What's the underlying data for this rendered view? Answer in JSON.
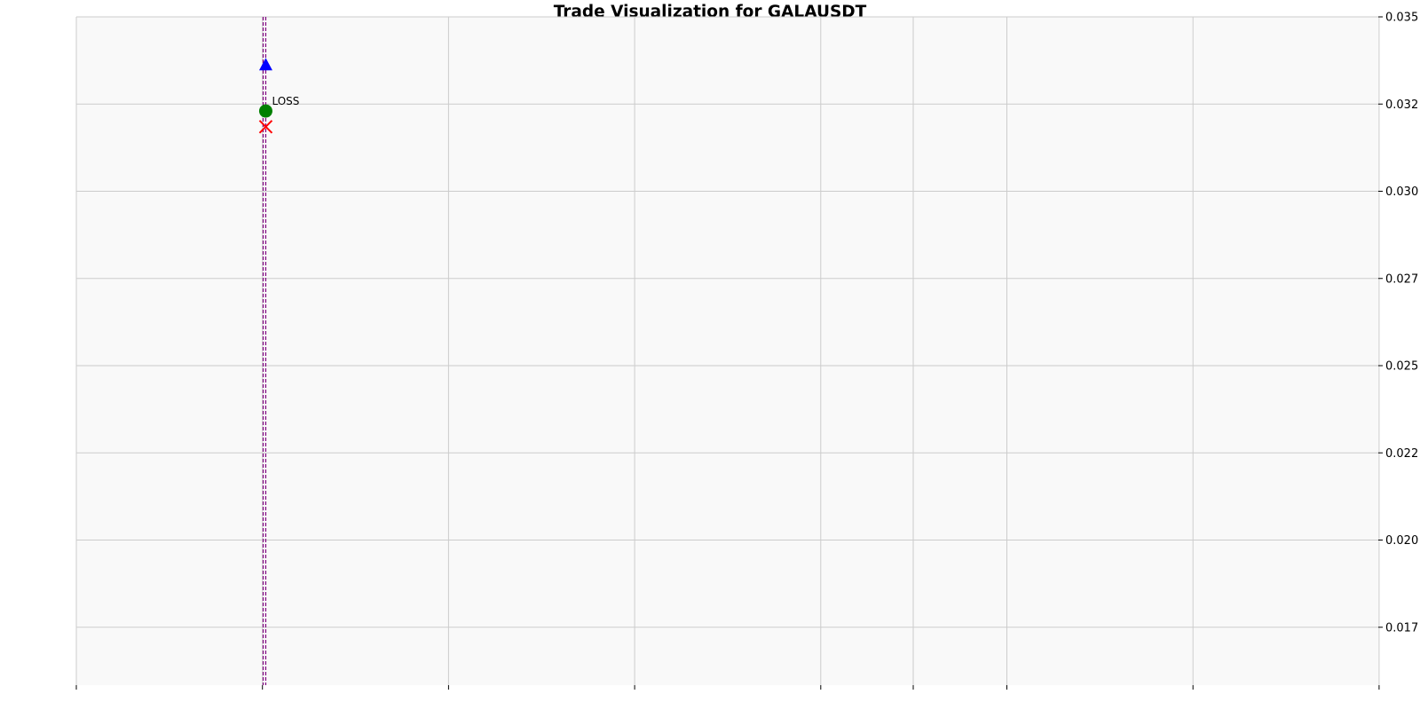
{
  "chart_data": {
    "type": "scatter",
    "title": "Trade Visualization for GALAUSDT",
    "xlabel": "",
    "ylabel": "",
    "ylim": [
      0.01584,
      0.035
    ],
    "y_ticks": [
      "0.017",
      "0.020",
      "0.022",
      "0.025",
      "0.027",
      "0.030",
      "0.032",
      "0.035"
    ],
    "y_tick_values": [
      0.0175,
      0.02,
      0.0225,
      0.025,
      0.0275,
      0.03,
      0.0325,
      0.035
    ],
    "y_axis_side": "right",
    "x_tick_count": 8,
    "x_tick_labels": [],
    "grid": true,
    "vertical_lines": [
      {
        "x_fraction": 0.1435,
        "color": "#800080",
        "style": "dashed"
      },
      {
        "x_fraction": 0.1455,
        "color": "#800080",
        "style": "dashed"
      }
    ],
    "points": [
      {
        "kind": "triangle",
        "x_fraction": 0.1455,
        "y": 0.03362,
        "color": "#0000ff"
      },
      {
        "kind": "circle",
        "x_fraction": 0.1455,
        "y": 0.0323,
        "color": "#008000",
        "label": "LOSS"
      },
      {
        "kind": "cross",
        "x_fraction": 0.1455,
        "y": 0.03185,
        "color": "#ff0000"
      }
    ]
  }
}
